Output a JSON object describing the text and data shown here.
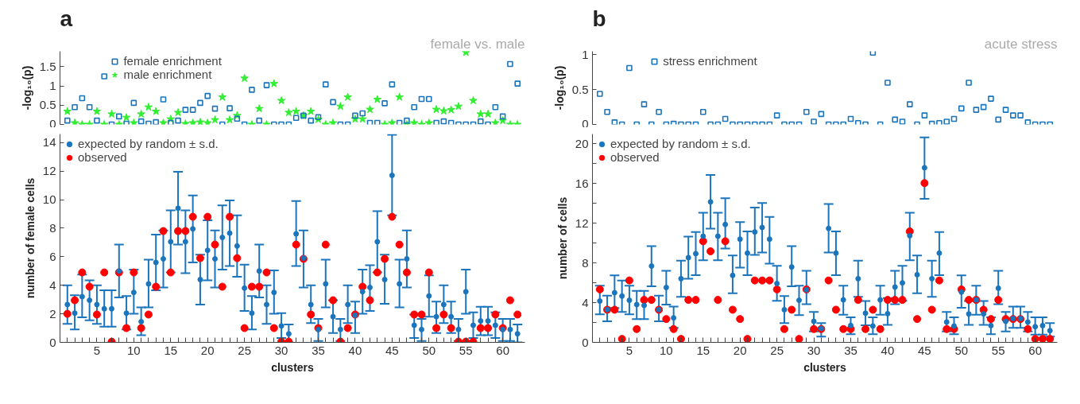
{
  "chart_data": [
    {
      "type": "scatter",
      "title": "a",
      "annotations": [
        "female vs. male"
      ],
      "ylabel": "-log₁₀(p)",
      "x": [
        1,
        2,
        3,
        4,
        5,
        6,
        7,
        8,
        9,
        10,
        11,
        12,
        13,
        14,
        15,
        16,
        17,
        18,
        19,
        20,
        21,
        22,
        23,
        24,
        25,
        26,
        27,
        28,
        29,
        30,
        31,
        32,
        33,
        34,
        35,
        36,
        37,
        38,
        39,
        40,
        41,
        42,
        43,
        44,
        45,
        46,
        47,
        48,
        49,
        50,
        51,
        52,
        53,
        54,
        55,
        56,
        57,
        58,
        59,
        60,
        61,
        62
      ],
      "ylim": [
        0,
        1.9
      ],
      "yticks": [
        0,
        0.5,
        1,
        1.5
      ],
      "tick_labels": "y",
      "grid": false,
      "legend": "top",
      "series": [
        {
          "name": "female enrichment",
          "color": "#1b75bc",
          "marker": "square",
          "values": [
            0.1,
            0.45,
            0.68,
            0.45,
            0.1,
            1.25,
            0,
            0.21,
            0.02,
            0.56,
            0.08,
            0.02,
            0.06,
            0.65,
            0.04,
            0.1,
            0.38,
            0.38,
            0.56,
            0.74,
            0.41,
            0,
            0.42,
            0.15,
            0,
            0.9,
            0.1,
            1.02,
            0,
            0,
            0,
            0.17,
            0.23,
            0.1,
            0.19,
            1.04,
            0.58,
            0,
            0,
            0.23,
            0.29,
            0.04,
            0.04,
            0.55,
            1.04,
            0.04,
            0.1,
            0.45,
            0.66,
            0.66,
            0.04,
            0.08,
            0.04,
            0,
            0,
            0,
            0.08,
            0,
            0.45,
            0.21,
            1.57,
            1.06
          ]
        },
        {
          "name": "male enrichment",
          "color": "#33ee33",
          "marker": "star",
          "values": [
            0.34,
            0.04,
            0,
            0,
            0.34,
            0,
            0.27,
            0,
            0.18,
            0.04,
            0.27,
            0.45,
            0.34,
            0.04,
            0.14,
            0.31,
            0.02,
            0.04,
            0.06,
            0.04,
            0.12,
            0.71,
            0.12,
            0.23,
            1.2,
            0,
            0.41,
            0,
            1.06,
            0.62,
            0.31,
            0.34,
            0.23,
            0.34,
            0.13,
            0,
            0.04,
            0.47,
            0.71,
            0.14,
            0.14,
            0.39,
            0.65,
            0,
            0.04,
            0.71,
            0,
            0.04,
            0,
            0.04,
            0.39,
            0.35,
            0.38,
            0.47,
            1.87,
            0.62,
            0.27,
            0.27,
            0.04,
            0.1,
            0,
            0
          ]
        }
      ]
    },
    {
      "type": "scatter",
      "title": "b",
      "annotations": [
        "acute stress"
      ],
      "ylabel": "-log₁₀(p)",
      "x": [
        1,
        2,
        3,
        4,
        5,
        6,
        7,
        8,
        9,
        10,
        11,
        12,
        13,
        14,
        15,
        16,
        17,
        18,
        19,
        20,
        21,
        22,
        23,
        24,
        25,
        26,
        27,
        28,
        29,
        30,
        31,
        32,
        33,
        34,
        35,
        36,
        37,
        38,
        39,
        40,
        41,
        42,
        43,
        44,
        45,
        46,
        47,
        48,
        49,
        50,
        51,
        52,
        53,
        54,
        55,
        56,
        57,
        58,
        59,
        60,
        61,
        62
      ],
      "ylim": [
        0,
        1.05
      ],
      "yticks": [
        0,
        0.5,
        1
      ],
      "tick_labels": "y",
      "grid": false,
      "legend": "top",
      "series": [
        {
          "name": "stress enrichment",
          "color": "#1b75bc",
          "marker": "square",
          "values": [
            0.44,
            0.18,
            0.03,
            0,
            0.81,
            0,
            0.29,
            0,
            0.18,
            0,
            0.01,
            0,
            0,
            0,
            0.18,
            0,
            0,
            0.08,
            0,
            0,
            0,
            0,
            0,
            0,
            0.13,
            0,
            0,
            0,
            0.18,
            0.04,
            0.15,
            0,
            0,
            0,
            0.08,
            0.02,
            0,
            1.03,
            0,
            0.6,
            0.07,
            0.04,
            0.29,
            0,
            0.13,
            0.01,
            0.02,
            0.04,
            0.08,
            0.23,
            0.6,
            0.21,
            0.25,
            0.37,
            0.07,
            0.21,
            0.13,
            0.13,
            0.03,
            0,
            0,
            0
          ]
        }
      ]
    },
    {
      "type": "scatter",
      "xlabel": "clusters",
      "ylabel": "number of female cells",
      "x": [
        1,
        2,
        3,
        4,
        5,
        6,
        7,
        8,
        9,
        10,
        11,
        12,
        13,
        14,
        15,
        16,
        17,
        18,
        19,
        20,
        21,
        22,
        23,
        24,
        25,
        26,
        27,
        28,
        29,
        30,
        31,
        32,
        33,
        34,
        35,
        36,
        37,
        38,
        39,
        40,
        41,
        42,
        43,
        44,
        45,
        46,
        47,
        48,
        49,
        50,
        51,
        52,
        53,
        54,
        55,
        56,
        57,
        58,
        59,
        60,
        61,
        62
      ],
      "xlim": [
        0,
        63
      ],
      "ylim": [
        0,
        14.6
      ],
      "yticks": [
        0,
        2,
        4,
        6,
        8,
        10,
        12,
        14
      ],
      "grid": false,
      "legend": "top left",
      "xticks": [
        {
          "value": 1,
          "label": null
        },
        {
          "value": 2,
          "label": null
        },
        {
          "value": 3,
          "label": null
        },
        {
          "value": 4,
          "label": null
        },
        5,
        {
          "value": 6,
          "label": null
        },
        {
          "value": 7,
          "label": null
        },
        {
          "value": 8,
          "label": null
        },
        {
          "value": 9,
          "label": null
        },
        10,
        {
          "value": 11,
          "label": null
        },
        {
          "value": 12,
          "label": null
        },
        {
          "value": 13,
          "label": null
        },
        {
          "value": 14,
          "label": null
        },
        15,
        {
          "value": 16,
          "label": null
        },
        {
          "value": 17,
          "label": null
        },
        {
          "value": 18,
          "label": null
        },
        {
          "value": 19,
          "label": null
        },
        20,
        {
          "value": 21,
          "label": null
        },
        {
          "value": 22,
          "label": null
        },
        {
          "value": 23,
          "label": null
        },
        {
          "value": 24,
          "label": null
        },
        25,
        {
          "value": 26,
          "label": null
        },
        {
          "value": 27,
          "label": null
        },
        {
          "value": 28,
          "label": null
        },
        {
          "value": 29,
          "label": null
        },
        30,
        {
          "value": 31,
          "label": null
        },
        {
          "value": 32,
          "label": null
        },
        {
          "value": 33,
          "label": null
        },
        {
          "value": 34,
          "label": null
        },
        35,
        {
          "value": 36,
          "label": null
        },
        {
          "value": 37,
          "label": null
        },
        {
          "value": 38,
          "label": null
        },
        {
          "value": 39,
          "label": null
        },
        40,
        {
          "value": 41,
          "label": null
        },
        {
          "value": 42,
          "label": null
        },
        {
          "value": 43,
          "label": null
        },
        {
          "value": 44,
          "label": null
        },
        45,
        {
          "value": 46,
          "label": null
        },
        {
          "value": 47,
          "label": null
        },
        {
          "value": 48,
          "label": null
        },
        {
          "value": 49,
          "label": null
        },
        50,
        {
          "value": 51,
          "label": null
        },
        {
          "value": 52,
          "label": null
        },
        {
          "value": 53,
          "label": null
        },
        {
          "value": 54,
          "label": null
        },
        55,
        {
          "value": 56,
          "label": null
        },
        {
          "value": 57,
          "label": null
        },
        {
          "value": 58,
          "label": null
        },
        {
          "value": 59,
          "label": null
        },
        60,
        {
          "value": 61,
          "label": null
        },
        {
          "value": 62,
          "label": null
        }
      ],
      "series": [
        {
          "name": "expected by random ± s.d.",
          "color": "#1b75bc",
          "marker": "circle",
          "values": [
            2.65,
            2.05,
            3.2,
            2.95,
            2.65,
            2.35,
            2.35,
            5.0,
            2.05,
            3.5,
            1.45,
            4.1,
            5.6,
            5.85,
            7.05,
            9.4,
            7.05,
            7.95,
            4.4,
            6.45,
            5.85,
            7.35,
            7.65,
            6.75,
            3.8,
            2.05,
            5.0,
            2.65,
            3.5,
            1.15,
            0.6,
            7.6,
            5.9,
            2.65,
            0.9,
            4.1,
            1.8,
            0.9,
            2.65,
            1.9,
            3.55,
            3.85,
            7.05,
            4.4,
            11.7,
            4.1,
            5.85,
            1.2,
            0.9,
            3.25,
            1.8,
            2.65,
            1.8,
            0.9,
            3.55,
            1.2,
            1.5,
            1.5,
            1.2,
            0.9,
            0.9,
            0.6
          ],
          "errors": [
            [
              1.3,
              4.0
            ],
            [
              0.9,
              3.3
            ],
            [
              1.75,
              4.75
            ],
            [
              1.55,
              4.35
            ],
            [
              1.3,
              4.0
            ],
            [
              1.1,
              3.65
            ],
            [
              1.1,
              3.65
            ],
            [
              3.15,
              6.85
            ],
            [
              0.9,
              3.25
            ],
            [
              2.0,
              5.1
            ],
            [
              0.5,
              2.45
            ],
            [
              2.45,
              5.8
            ],
            [
              3.65,
              7.55
            ],
            [
              3.85,
              7.85
            ],
            [
              4.9,
              9.25
            ],
            [
              6.85,
              11.95
            ],
            [
              4.85,
              9.25
            ],
            [
              5.6,
              10.3
            ],
            [
              2.65,
              6.15
            ],
            [
              4.35,
              8.55
            ],
            [
              3.85,
              7.85
            ],
            [
              5.1,
              9.6
            ],
            [
              5.35,
              9.95
            ],
            [
              4.6,
              8.9
            ],
            [
              2.2,
              5.45
            ],
            [
              0.9,
              3.25
            ],
            [
              3.15,
              6.85
            ],
            [
              1.3,
              4.0
            ],
            [
              2.0,
              5.05
            ],
            [
              0.3,
              2.05
            ],
            [
              0,
              1.25
            ],
            [
              5.35,
              9.9
            ],
            [
              3.85,
              7.85
            ],
            [
              1.35,
              4.0
            ],
            [
              0.1,
              1.65
            ],
            [
              2.45,
              5.8
            ],
            [
              0.65,
              2.95
            ],
            [
              0.1,
              1.65
            ],
            [
              1.35,
              4.0
            ],
            [
              0.65,
              2.85
            ],
            [
              2.0,
              5.1
            ],
            [
              2.2,
              5.4
            ],
            [
              4.9,
              9.2
            ],
            [
              2.7,
              6.15
            ],
            [
              8.9,
              14.55
            ],
            [
              2.45,
              5.8
            ],
            [
              3.85,
              7.85
            ],
            [
              0.3,
              1.95
            ],
            [
              0.1,
              1.65
            ],
            [
              1.8,
              4.7
            ],
            [
              0.65,
              2.85
            ],
            [
              1.35,
              4.0
            ],
            [
              0.65,
              2.85
            ],
            [
              0.1,
              1.65
            ],
            [
              2.0,
              5.1
            ],
            [
              0.3,
              2.1
            ],
            [
              0.5,
              2.5
            ],
            [
              0.5,
              2.5
            ],
            [
              0.3,
              2.1
            ],
            [
              0.1,
              1.65
            ],
            [
              0.1,
              1.65
            ],
            [
              0,
              1.25
            ]
          ]
        },
        {
          "name": "observed",
          "color": "#ff0000",
          "marker": "circle",
          "values": [
            2,
            2.95,
            4.9,
            3.9,
            1.95,
            4.9,
            0.05,
            4.9,
            1,
            4.9,
            1,
            1.95,
            3.9,
            7.8,
            4.9,
            7.8,
            7.8,
            8.8,
            5.9,
            8.8,
            6.85,
            3.9,
            8.8,
            5.9,
            1,
            3.9,
            3.9,
            4.9,
            1,
            0.05,
            0.05,
            6.85,
            5.85,
            1.95,
            1,
            6.85,
            2.95,
            0.05,
            1,
            1.95,
            3.9,
            2.95,
            4.9,
            5.85,
            8.8,
            6.85,
            4.9,
            1.95,
            1.95,
            4.9,
            1,
            1.95,
            1,
            0.05,
            0.05,
            0.05,
            1,
            1,
            1.95,
            1,
            2.95,
            1.95
          ]
        }
      ]
    },
    {
      "type": "scatter",
      "xlabel": "clusters",
      "ylabel": "number of cells",
      "x": [
        1,
        2,
        3,
        4,
        5,
        6,
        7,
        8,
        9,
        10,
        11,
        12,
        13,
        14,
        15,
        16,
        17,
        18,
        19,
        20,
        21,
        22,
        23,
        24,
        25,
        26,
        27,
        28,
        29,
        30,
        31,
        32,
        33,
        34,
        35,
        36,
        37,
        38,
        39,
        40,
        41,
        42,
        43,
        44,
        45,
        46,
        47,
        48,
        49,
        50,
        51,
        52,
        53,
        54,
        55,
        56,
        57,
        58,
        59,
        60,
        61,
        62
      ],
      "xlim": [
        0,
        63
      ],
      "ylim": [
        0,
        21
      ],
      "yticks": [
        0,
        {
          "value": 2,
          "label": null
        },
        4,
        {
          "value": 6,
          "label": null
        },
        8,
        {
          "value": 10,
          "label": null
        },
        12,
        {
          "value": 14,
          "label": null
        },
        16,
        {
          "value": 18,
          "label": null
        },
        20
      ],
      "grid": false,
      "legend": "top left",
      "xticks": [
        {
          "value": 1,
          "label": null
        },
        {
          "value": 2,
          "label": null
        },
        {
          "value": 3,
          "label": null
        },
        {
          "value": 4,
          "label": null
        },
        5,
        {
          "value": 6,
          "label": null
        },
        {
          "value": 7,
          "label": null
        },
        {
          "value": 8,
          "label": null
        },
        {
          "value": 9,
          "label": null
        },
        10,
        {
          "value": 11,
          "label": null
        },
        {
          "value": 12,
          "label": null
        },
        {
          "value": 13,
          "label": null
        },
        {
          "value": 14,
          "label": null
        },
        15,
        {
          "value": 16,
          "label": null
        },
        {
          "value": 17,
          "label": null
        },
        {
          "value": 18,
          "label": null
        },
        {
          "value": 19,
          "label": null
        },
        20,
        {
          "value": 21,
          "label": null
        },
        {
          "value": 22,
          "label": null
        },
        {
          "value": 23,
          "label": null
        },
        {
          "value": 24,
          "label": null
        },
        25,
        {
          "value": 26,
          "label": null
        },
        {
          "value": 27,
          "label": null
        },
        {
          "value": 28,
          "label": null
        },
        {
          "value": 29,
          "label": null
        },
        30,
        {
          "value": 31,
          "label": null
        },
        {
          "value": 32,
          "label": null
        },
        {
          "value": 33,
          "label": null
        },
        {
          "value": 34,
          "label": null
        },
        35,
        {
          "value": 36,
          "label": null
        },
        {
          "value": 37,
          "label": null
        },
        {
          "value": 38,
          "label": null
        },
        {
          "value": 39,
          "label": null
        },
        40,
        {
          "value": 41,
          "label": null
        },
        {
          "value": 42,
          "label": null
        },
        {
          "value": 43,
          "label": null
        },
        {
          "value": 44,
          "label": null
        },
        45,
        {
          "value": 46,
          "label": null
        },
        {
          "value": 47,
          "label": null
        },
        {
          "value": 48,
          "label": null
        },
        {
          "value": 49,
          "label": null
        },
        50,
        {
          "value": 51,
          "label": null
        },
        {
          "value": 52,
          "label": null
        },
        {
          "value": 53,
          "label": null
        },
        {
          "value": 54,
          "label": null
        },
        55,
        {
          "value": 56,
          "label": null
        },
        {
          "value": 57,
          "label": null
        },
        {
          "value": 58,
          "label": null
        },
        {
          "value": 59,
          "label": null
        },
        60,
        {
          "value": 61,
          "label": null
        },
        {
          "value": 62,
          "label": null
        }
      ],
      "series": [
        {
          "name": "expected by random ± s.d.",
          "color": "#1b75bc",
          "marker": "circle",
          "values": [
            4.16,
            3.3,
            5.0,
            4.66,
            4.24,
            3.81,
            3.72,
            7.69,
            3.3,
            5.53,
            2.47,
            6.42,
            8.54,
            8.94,
            10.7,
            14.16,
            10.7,
            11.88,
            6.75,
            10.4,
            8.99,
            11.13,
            11.58,
            10.4,
            5.93,
            3.29,
            7.6,
            4.24,
            5.3,
            2.12,
            1.4,
            11.48,
            8.99,
            4.28,
            1.7,
            6.42,
            2.94,
            1.65,
            4.28,
            2.89,
            5.58,
            6.0,
            10.75,
            6.82,
            17.6,
            6.42,
            8.99,
            2.05,
            1.65,
            5.06,
            2.87,
            4.28,
            2.87,
            1.69,
            5.46,
            2.12,
            2.4,
            2.4,
            2.05,
            1.58,
            1.69,
            1.18
          ],
          "errors": [
            [
              2.82,
              5.72
            ],
            [
              2.12,
              4.71
            ],
            [
              3.46,
              6.75
            ],
            [
              3.06,
              6.24
            ],
            [
              2.82,
              5.72
            ],
            [
              2.35,
              5.18
            ],
            [
              2.35,
              5.18
            ],
            [
              5.65,
              9.7
            ],
            [
              2.12,
              4.71
            ],
            [
              3.81,
              7.22
            ],
            [
              1.46,
              3.6
            ],
            [
              4.59,
              8.24
            ],
            [
              6.42,
              10.66
            ],
            [
              6.78,
              11.13
            ],
            [
              8.28,
              13.06
            ],
            [
              11.46,
              16.87
            ],
            [
              8.28,
              13.06
            ],
            [
              9.46,
              14.52
            ],
            [
              4.94,
              8.75
            ],
            [
              7.53,
              12.12
            ],
            [
              6.78,
              11.18
            ],
            [
              8.82,
              13.58
            ],
            [
              9.06,
              14.05
            ],
            [
              7.93,
              12.64
            ],
            [
              4.19,
              7.72
            ],
            [
              1.95,
              4.66
            ],
            [
              5.65,
              9.7
            ],
            [
              2.75,
              5.72
            ],
            [
              3.84,
              7.22
            ],
            [
              1.1,
              3.06
            ],
            [
              0.59,
              1.95
            ],
            [
              9.06,
              13.95
            ],
            [
              6.78,
              11.18
            ],
            [
              2.78,
              5.72
            ],
            [
              0.82,
              2.52
            ],
            [
              4.59,
              8.24
            ],
            [
              1.72,
              4.16
            ],
            [
              0.82,
              2.52
            ],
            [
              2.78,
              5.72
            ],
            [
              1.76,
              4.47
            ],
            [
              3.84,
              7.22
            ],
            [
              4.19,
              7.72
            ],
            [
              8.28,
              13.06
            ],
            [
              4.94,
              8.75
            ],
            [
              14.47,
              20.66
            ],
            [
              4.59,
              8.24
            ],
            [
              6.78,
              11.13
            ],
            [
              1.1,
              3.06
            ],
            [
              0.82,
              2.52
            ],
            [
              3.48,
              6.75
            ],
            [
              1.76,
              4.16
            ],
            [
              2.78,
              5.72
            ],
            [
              1.76,
              4.16
            ],
            [
              0.82,
              2.52
            ],
            [
              3.84,
              7.22
            ],
            [
              1.1,
              3.06
            ],
            [
              1.46,
              3.6
            ],
            [
              1.46,
              3.6
            ],
            [
              1.1,
              3.06
            ],
            [
              0.78,
              2.52
            ],
            [
              0.78,
              2.52
            ],
            [
              0.59,
              1.95
            ]
          ]
        },
        {
          "name": "observed",
          "color": "#ff0000",
          "marker": "circle",
          "values": [
            5.34,
            3.29,
            3.29,
            0.35,
            6.24,
            1.34,
            4.28,
            4.28,
            3.29,
            2.35,
            1.34,
            0.35,
            4.28,
            4.28,
            10.19,
            9.18,
            4.28,
            10.19,
            3.29,
            2.35,
            0.35,
            6.24,
            6.24,
            6.24,
            5.34,
            1.34,
            3.29,
            0.35,
            5.34,
            1.34,
            1.34,
            6.24,
            3.29,
            1.34,
            1.34,
            4.28,
            1.34,
            3.29,
            1.34,
            4.28,
            4.28,
            4.28,
            11.18,
            2.35,
            16.05,
            3.29,
            6.24,
            1.34,
            1.34,
            5.34,
            4.28,
            4.28,
            3.29,
            2.35,
            4.28,
            2.35,
            2.35,
            2.35,
            1.34,
            0.35,
            0.35,
            0.35
          ]
        }
      ]
    }
  ]
}
